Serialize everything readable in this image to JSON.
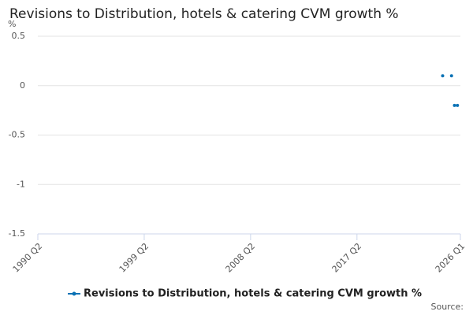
{
  "chart_data": {
    "type": "scatter",
    "title": "Revisions to Distribution, hotels & catering CVM growth %",
    "y_label": "%",
    "source": "Source:",
    "series": [
      {
        "name": "Revisions to Distribution, hotels & catering CVM growth %",
        "color": "#0a72b5",
        "x": [
          2024.5,
          2025.25,
          2025.5,
          2025.75
        ],
        "values": [
          0.1,
          0.1,
          -0.2,
          -0.2
        ]
      }
    ],
    "xlim": [
      1990.25,
      2026.0
    ],
    "xticks": [
      {
        "value": 1990.25,
        "label": "1990 Q2"
      },
      {
        "value": 1999.25,
        "label": "1999 Q2"
      },
      {
        "value": 2008.25,
        "label": "2008 Q2"
      },
      {
        "value": 2017.25,
        "label": "2017 Q2"
      },
      {
        "value": 2026.0,
        "label": "2026 Q1"
      }
    ],
    "ylim": [
      -1.5,
      0.5
    ],
    "yticks": [
      0.5,
      0,
      -0.5,
      -1,
      -1.5
    ],
    "grid": true
  }
}
